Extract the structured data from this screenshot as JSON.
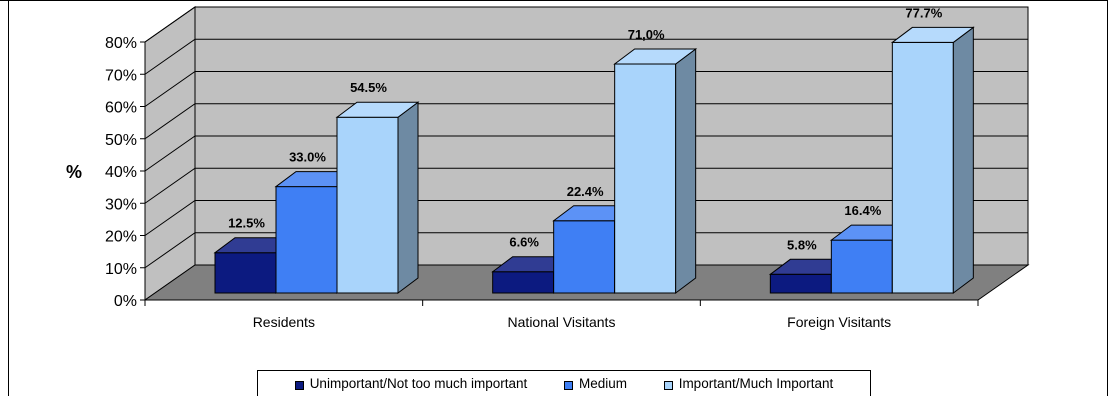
{
  "chart_data": {
    "type": "bar",
    "title": "",
    "xlabel": "",
    "ylabel": "%",
    "ylim": [
      0,
      80
    ],
    "ytick_labels": [
      "0%",
      "10%",
      "20%",
      "30%",
      "40%",
      "50%",
      "60%",
      "70%",
      "80%"
    ],
    "categories": [
      "Residents",
      "National Visitants",
      "Foreign Visitants"
    ],
    "series": [
      {
        "name": "Unimportant/Not too much important",
        "values": [
          12.5,
          6.6,
          5.8
        ],
        "labels": [
          "12.5%",
          "6.6%",
          "5.8%"
        ],
        "color": "#0C1A80"
      },
      {
        "name": "Medium",
        "values": [
          33.0,
          22.4,
          16.4
        ],
        "labels": [
          "33.0%",
          "22.4%",
          "16.4%"
        ],
        "color": "#3F7FF4"
      },
      {
        "name": "Important/Much Important",
        "values": [
          54.5,
          71.0,
          77.7
        ],
        "labels": [
          "54.5%",
          "71,0%",
          "77.7%"
        ],
        "color": "#A9D4FB"
      }
    ],
    "grid": true,
    "style": "3d",
    "legend_position": "bottom",
    "wall_color": "#C0C0C0",
    "floor_color": "#808080"
  }
}
